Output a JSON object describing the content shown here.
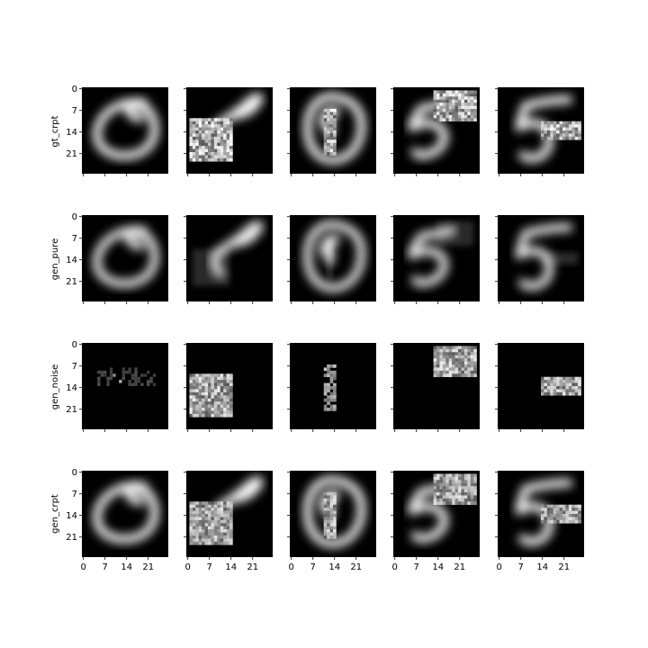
{
  "figure": {
    "rows": [
      {
        "label": "gt_crpt"
      },
      {
        "label": "gen_pure"
      },
      {
        "label": "gen_noise"
      },
      {
        "label": "gen_crpt"
      }
    ],
    "columns": 5
  },
  "chart_data": {
    "type": "heatmap",
    "colormap": "gray",
    "image_size": [
      28,
      28
    ],
    "xticks": [
      0,
      7,
      14,
      21
    ],
    "yticks": [
      0,
      7,
      14,
      21
    ],
    "x_tick_labels_on": "bottom row only",
    "y_tick_labels_on": "first column only",
    "row_labels": [
      "gt_crpt",
      "gen_pure",
      "gen_noise",
      "gen_crpt"
    ],
    "columns": [
      {
        "digit": "0",
        "noise_block": null
      },
      {
        "digit": "0",
        "noise_block": {
          "x0": 1,
          "y0": 10,
          "x1": 15,
          "y1": 24
        }
      },
      {
        "digit": "0",
        "noise_block": {
          "x0": 11,
          "y0": 7,
          "x1": 15,
          "y1": 22
        }
      },
      {
        "digit": "5",
        "noise_block": {
          "x0": 13,
          "y0": 1,
          "x1": 27,
          "y1": 11
        }
      },
      {
        "digit": "5",
        "noise_block": {
          "x0": 14,
          "y0": 11,
          "x1": 27,
          "y1": 17
        }
      }
    ]
  }
}
